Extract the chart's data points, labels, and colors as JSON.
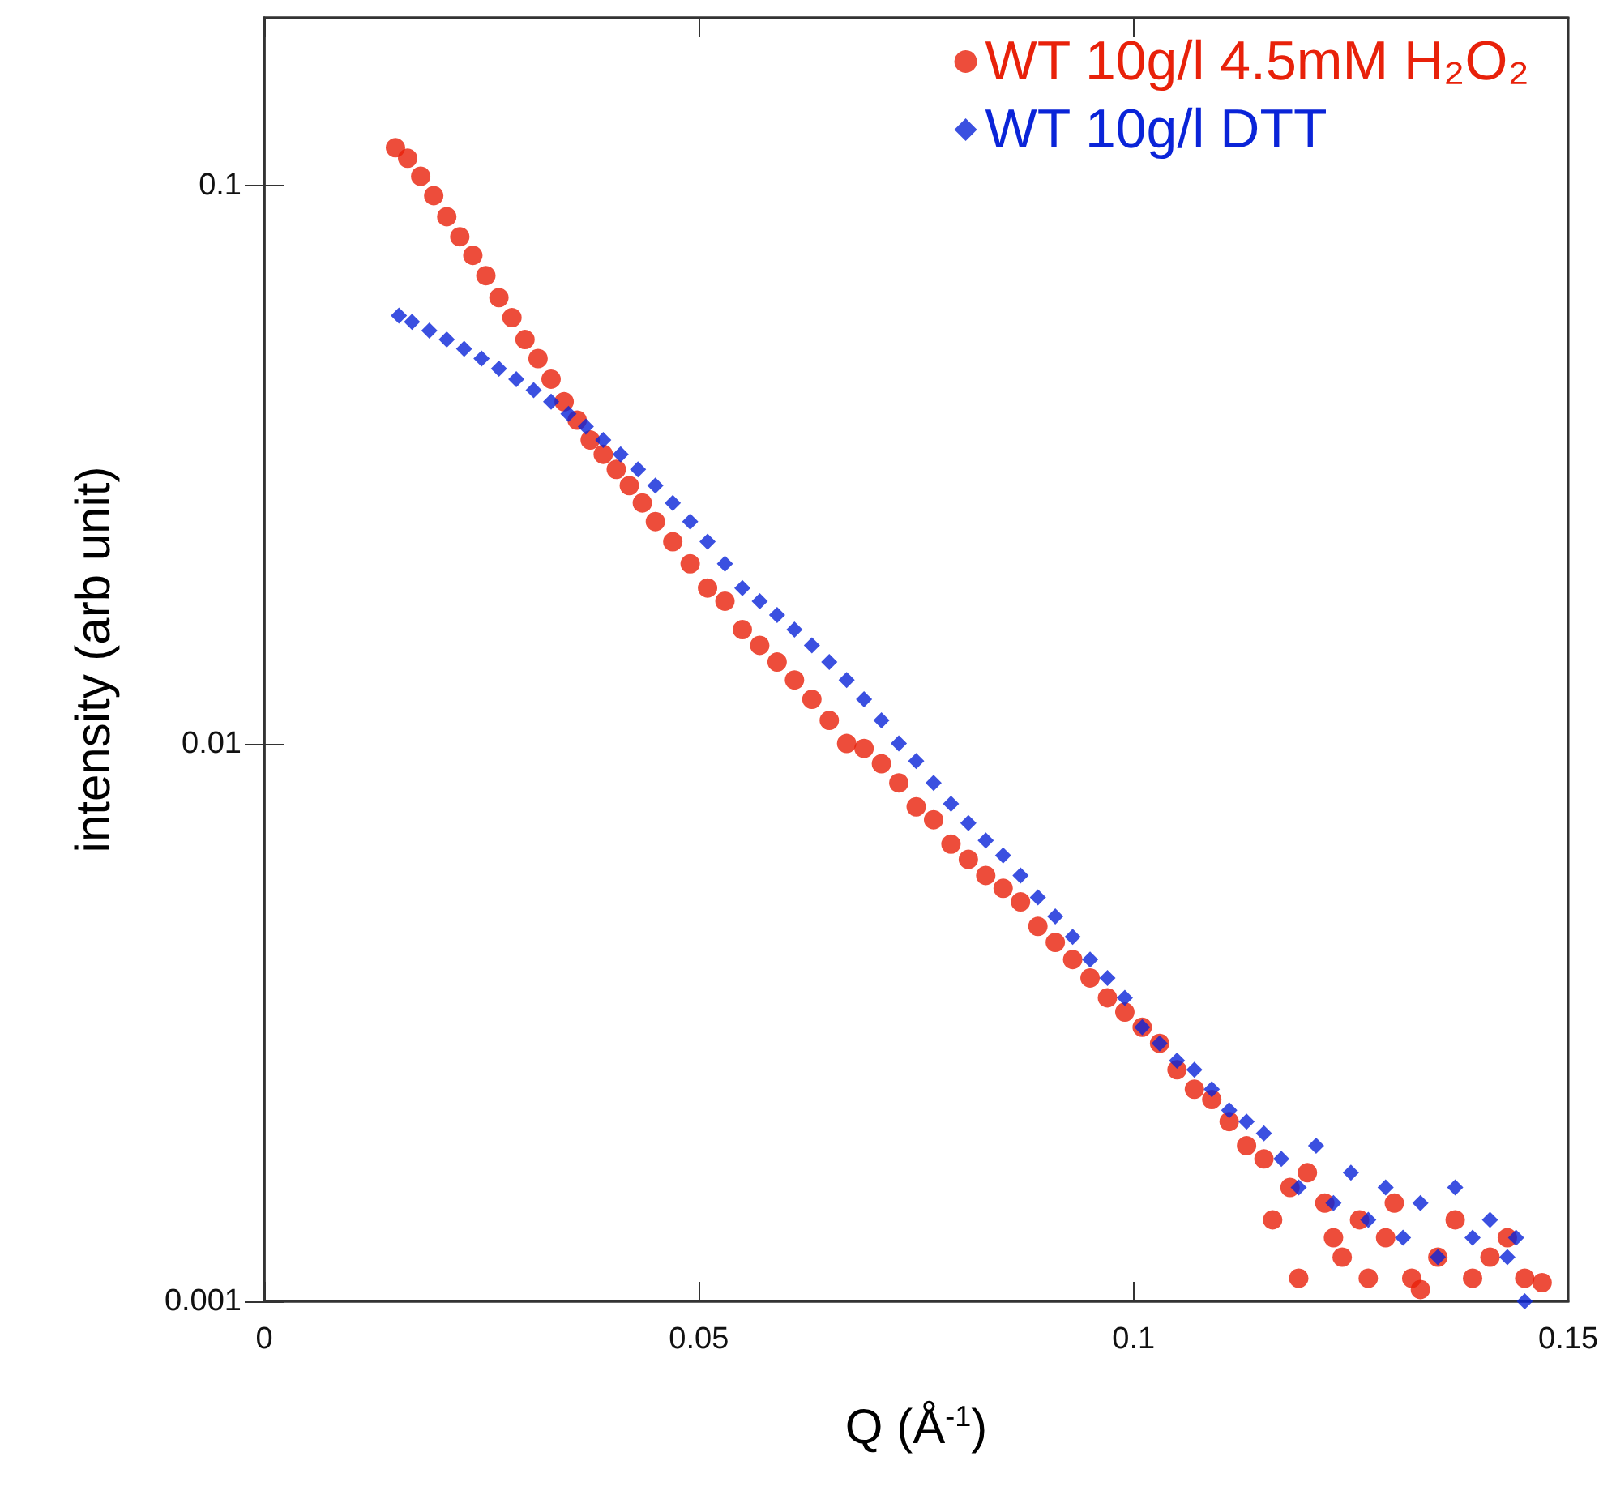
{
  "chart_data": {
    "type": "scatter",
    "xlabel": "Q (Å$^{-1}$)",
    "ylabel": "intensity (arb unit)",
    "log": "y",
    "grid": false,
    "legend": "top right",
    "xlim": [
      0,
      0.15
    ],
    "xticks": [
      0,
      0.05,
      0.1,
      0.15
    ],
    "ylim": [
      0.001,
      0.2
    ],
    "yticks": [
      0.001,
      0.01,
      0.1
    ],
    "series": [
      {
        "name": "WT 10g/l 4.5mM H₂O₂",
        "color": "#e8210a",
        "marker": "circle",
        "x": [
          0.0151,
          0.0165,
          0.018,
          0.0195,
          0.021,
          0.0225,
          0.024,
          0.0255,
          0.027,
          0.0285,
          0.03,
          0.0315,
          0.033,
          0.0345,
          0.036,
          0.0375,
          0.039,
          0.0405,
          0.042,
          0.0435,
          0.045,
          0.047,
          0.049,
          0.051,
          0.053,
          0.055,
          0.057,
          0.059,
          0.061,
          0.063,
          0.065,
          0.067,
          0.069,
          0.071,
          0.073,
          0.075,
          0.077,
          0.079,
          0.081,
          0.083,
          0.085,
          0.087,
          0.089,
          0.091,
          0.093,
          0.095,
          0.097,
          0.099,
          0.101,
          0.103,
          0.105,
          0.107,
          0.109,
          0.111,
          0.113,
          0.115,
          0.116,
          0.118,
          0.119,
          0.12,
          0.122,
          0.123,
          0.124,
          0.126,
          0.127,
          0.129,
          0.13,
          0.132,
          0.133,
          0.135,
          0.137,
          0.139,
          0.141,
          0.143,
          0.145,
          0.147
        ],
        "values": [
          0.117,
          0.112,
          0.104,
          0.096,
          0.088,
          0.081,
          0.075,
          0.069,
          0.063,
          0.058,
          0.053,
          0.049,
          0.045,
          0.041,
          0.038,
          0.035,
          0.033,
          0.031,
          0.029,
          0.027,
          0.025,
          0.023,
          0.021,
          0.019,
          0.018,
          0.016,
          0.015,
          0.014,
          0.013,
          0.012,
          0.011,
          0.01,
          0.0098,
          0.0092,
          0.0085,
          0.0077,
          0.0073,
          0.0066,
          0.0062,
          0.0058,
          0.0055,
          0.0052,
          0.0047,
          0.0044,
          0.0041,
          0.0038,
          0.0035,
          0.0033,
          0.0031,
          0.0029,
          0.0026,
          0.0024,
          0.0023,
          0.0021,
          0.0019,
          0.0018,
          0.0014,
          0.0016,
          0.0011,
          0.0017,
          0.0015,
          0.0013,
          0.0012,
          0.0014,
          0.0011,
          0.0013,
          0.0015,
          0.0011,
          0.00105,
          0.0012,
          0.0014,
          0.0011,
          0.0012,
          0.0013,
          0.0011,
          0.00108
        ]
      },
      {
        "name": "WT 10g/l DTT",
        "color": "#0a24d8",
        "marker": "diamond",
        "x": [
          0.0155,
          0.017,
          0.019,
          0.021,
          0.023,
          0.025,
          0.027,
          0.029,
          0.031,
          0.033,
          0.035,
          0.037,
          0.039,
          0.041,
          0.043,
          0.045,
          0.047,
          0.049,
          0.051,
          0.053,
          0.055,
          0.057,
          0.059,
          0.061,
          0.063,
          0.065,
          0.067,
          0.069,
          0.071,
          0.073,
          0.075,
          0.077,
          0.079,
          0.081,
          0.083,
          0.085,
          0.087,
          0.089,
          0.091,
          0.093,
          0.095,
          0.097,
          0.099,
          0.101,
          0.103,
          0.105,
          0.107,
          0.109,
          0.111,
          0.113,
          0.115,
          0.117,
          0.119,
          0.121,
          0.123,
          0.125,
          0.127,
          0.129,
          0.131,
          0.133,
          0.135,
          0.137,
          0.139,
          0.141,
          0.143,
          0.144,
          0.145
        ],
        "values": [
          0.0585,
          0.057,
          0.055,
          0.053,
          0.051,
          0.049,
          0.047,
          0.045,
          0.043,
          0.041,
          0.039,
          0.037,
          0.035,
          0.033,
          0.031,
          0.029,
          0.027,
          0.025,
          0.023,
          0.021,
          0.019,
          0.018,
          0.017,
          0.016,
          0.015,
          0.014,
          0.013,
          0.012,
          0.011,
          0.01,
          0.0093,
          0.0085,
          0.0078,
          0.0072,
          0.0067,
          0.0063,
          0.0058,
          0.0053,
          0.0049,
          0.0045,
          0.0041,
          0.0038,
          0.0035,
          0.0031,
          0.0029,
          0.0027,
          0.0026,
          0.0024,
          0.0022,
          0.0021,
          0.002,
          0.0018,
          0.0016,
          0.0019,
          0.0015,
          0.0017,
          0.0014,
          0.0016,
          0.0013,
          0.0015,
          0.0012,
          0.0016,
          0.0013,
          0.0014,
          0.0012,
          0.0013,
          0.001
        ]
      }
    ]
  }
}
